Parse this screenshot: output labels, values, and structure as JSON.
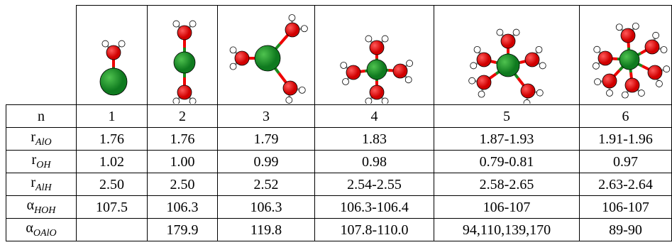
{
  "table": {
    "rows": [
      {
        "label": "n",
        "cells": [
          "1",
          "2",
          "3",
          "4",
          "5",
          "6"
        ]
      },
      {
        "label": "r",
        "sub": "AlO",
        "cells": [
          "1.76",
          "1.76",
          "1.79",
          "1.83",
          "1.87-1.93",
          "1.91-1.96"
        ]
      },
      {
        "label": "r",
        "sub": "OH",
        "cells": [
          "1.02",
          "1.00",
          "0.99",
          "0.98",
          "0.79-0.81",
          "0.97"
        ]
      },
      {
        "label": "r",
        "sub": "AlH",
        "cells": [
          "2.50",
          "2.50",
          "2.52",
          "2.54-2.55",
          "2.58-2.65",
          "2.63-2.64"
        ]
      },
      {
        "label": "α",
        "sub": "HOH",
        "cells": [
          "107.5",
          "106.3",
          "106.3",
          "106.3-106.4",
          "106-107",
          "106-107"
        ]
      },
      {
        "label": "α",
        "sub": "OAlO",
        "cells": [
          null,
          "179.9",
          "119.8",
          "107.8-110.0",
          "94,110,139,170",
          "89-90"
        ]
      }
    ]
  }
}
